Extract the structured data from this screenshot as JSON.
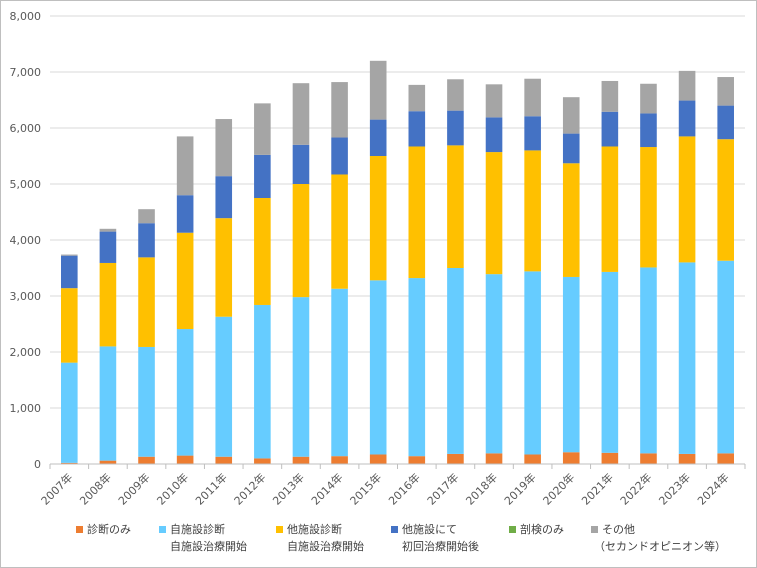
{
  "chart_data": {
    "type": "bar",
    "stacked": true,
    "title": "",
    "xlabel": "",
    "ylabel": "",
    "ylim": [
      0,
      8000
    ],
    "yticks": [
      "0",
      "1,000",
      "2,000",
      "3,000",
      "4,000",
      "5,000",
      "6,000",
      "7,000",
      "8,000"
    ],
    "grid": true,
    "legend_position": "bottom",
    "categories": [
      "2007年",
      "2008年",
      "2009年",
      "2010年",
      "2011年",
      "2012年",
      "2013年",
      "2014年",
      "2015年",
      "2016年",
      "2017年",
      "2018年",
      "2019年",
      "2020年",
      "2021年",
      "2022年",
      "2023年",
      "2024年"
    ],
    "series": [
      {
        "name": "診断のみ",
        "label_lines": [
          "診断のみ"
        ],
        "color": "#ed7d31",
        "values": [
          20,
          60,
          130,
          150,
          130,
          100,
          130,
          140,
          170,
          140,
          180,
          190,
          170,
          210,
          200,
          190,
          180,
          190
        ]
      },
      {
        "name": "自施設診断 自施設治療開始",
        "label_lines": [
          "自施設診断",
          "自施設治療開始"
        ],
        "color": "#66ccff",
        "values": [
          1790,
          2040,
          1960,
          2260,
          2500,
          2740,
          2850,
          2990,
          3110,
          3180,
          3320,
          3200,
          3270,
          3130,
          3230,
          3320,
          3420,
          3440
        ]
      },
      {
        "name": "他施設診断 自施設治療開始",
        "label_lines": [
          "他施設診断",
          "自施設治療開始"
        ],
        "color": "#ffc000",
        "values": [
          1330,
          1490,
          1600,
          1720,
          1760,
          1910,
          2020,
          2040,
          2220,
          2350,
          2190,
          2180,
          2160,
          2030,
          2240,
          2150,
          2250,
          2170
        ]
      },
      {
        "name": "他施設にて 初回治療開始後",
        "label_lines": [
          "他施設にて",
          "初回治療開始後"
        ],
        "color": "#4472c4",
        "values": [
          580,
          560,
          610,
          670,
          750,
          770,
          700,
          660,
          650,
          630,
          620,
          620,
          610,
          530,
          620,
          600,
          640,
          600
        ]
      },
      {
        "name": "剖検のみ",
        "label_lines": [
          "剖検のみ"
        ],
        "color": "#70ad47",
        "values": [
          0,
          0,
          0,
          0,
          0,
          0,
          0,
          0,
          0,
          0,
          0,
          0,
          0,
          0,
          0,
          0,
          0,
          0
        ]
      },
      {
        "name": "その他 （セカンドオピニオン等）",
        "label_lines": [
          "その他",
          "（セカンドオピニオン等）"
        ],
        "color": "#a5a5a5",
        "values": [
          20,
          50,
          250,
          1050,
          1020,
          920,
          1100,
          990,
          1050,
          470,
          560,
          590,
          670,
          650,
          550,
          530,
          530,
          510
        ]
      }
    ]
  }
}
